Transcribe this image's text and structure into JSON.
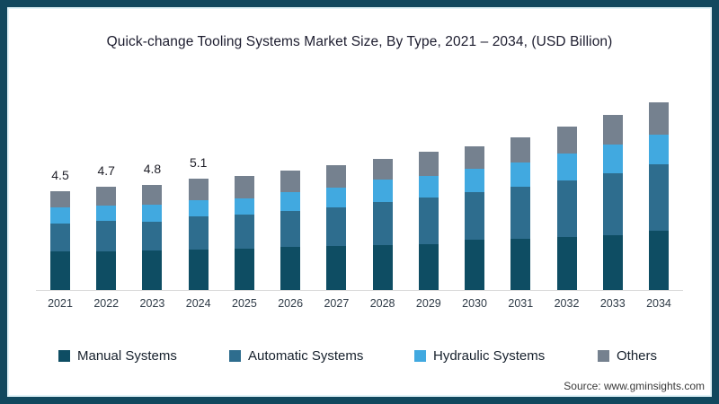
{
  "frame": {
    "border_color": "#11485e",
    "inner_edge_color": "#e2f4f9"
  },
  "title": "Quick-change Tooling Systems Market Size, By Type, 2021 – 2034, (USD Billion)",
  "source": "Source: www.gminsights.com",
  "chart_data": {
    "type": "bar",
    "stacked": true,
    "title": "Quick-change Tooling Systems Market Size, By Type, 2021 – 2034, (USD Billion)",
    "xlabel": "",
    "ylabel": "USD Billion",
    "grid": false,
    "legend_position": "bottom",
    "categories": [
      "2021",
      "2022",
      "2023",
      "2024",
      "2025",
      "2026",
      "2027",
      "2028",
      "2029",
      "2030",
      "2031",
      "2032",
      "2033",
      "2034"
    ],
    "series": [
      {
        "name": "Manual Systems",
        "color": "#0e4d63",
        "values": [
          1.75,
          1.78,
          1.8,
          1.83,
          1.87,
          1.95,
          2.0,
          2.03,
          2.1,
          2.3,
          2.35,
          2.42,
          2.52,
          2.72
        ]
      },
      {
        "name": "Automatic Systems",
        "color": "#2e6d8e",
        "values": [
          1.28,
          1.36,
          1.33,
          1.54,
          1.56,
          1.65,
          1.79,
          1.98,
          2.12,
          2.15,
          2.37,
          2.58,
          2.82,
          3.02
        ]
      },
      {
        "name": "Hydraulic Systems",
        "color": "#41a9e0",
        "values": [
          0.74,
          0.72,
          0.76,
          0.74,
          0.77,
          0.88,
          0.9,
          1.05,
          0.98,
          1.08,
          1.09,
          1.25,
          1.3,
          1.37
        ]
      },
      {
        "name": "Others",
        "color": "#75818f",
        "values": [
          0.73,
          0.84,
          0.91,
          0.99,
          1.0,
          0.97,
          1.01,
          0.94,
          1.13,
          1.02,
          1.15,
          1.22,
          1.34,
          1.47
        ]
      }
    ],
    "totals": [
      4.5,
      4.7,
      4.8,
      5.1,
      5.2,
      5.45,
      5.7,
      6.0,
      6.33,
      6.55,
      6.96,
      7.47,
      7.98,
      8.58
    ],
    "value_labels": [
      "4.5",
      "4.7",
      "4.8",
      "5.1",
      "",
      "",
      "",
      "",
      "",
      "",
      "",
      "",
      "",
      ""
    ],
    "axis_line_color": "#d9d9d9",
    "ylim": [
      0,
      9
    ]
  }
}
